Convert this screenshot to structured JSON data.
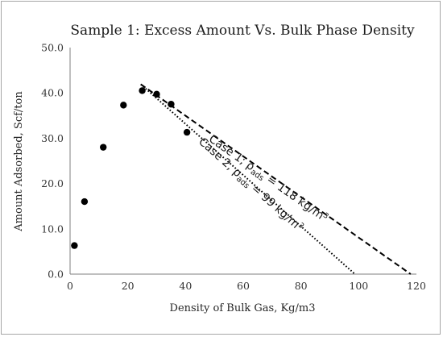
{
  "chart_data": {
    "type": "scatter",
    "title": "Sample 1: Excess Amount Vs. Bulk Phase Density",
    "xlabel": "Density of Bulk Gas, Kg/m3",
    "ylabel": "Amount Adsorbed, Scf/ton",
    "xlim": [
      0,
      120
    ],
    "ylim": [
      0,
      50
    ],
    "x_ticks": [
      "0",
      "20",
      "40",
      "60",
      "80",
      "100",
      "120"
    ],
    "y_ticks": [
      "0.0",
      "10.0",
      "20.0",
      "30.0",
      "40.0",
      "50.0"
    ],
    "x_tick_values": [
      0,
      20,
      40,
      60,
      80,
      100,
      120
    ],
    "y_tick_values": [
      0,
      10,
      20,
      30,
      40,
      50
    ],
    "grid": false,
    "legend": "none",
    "points": [
      {
        "x": 1.5,
        "y": 6.3
      },
      {
        "x": 5.0,
        "y": 16.0
      },
      {
        "x": 11.5,
        "y": 28.0
      },
      {
        "x": 18.5,
        "y": 37.3
      },
      {
        "x": 25.0,
        "y": 40.5
      },
      {
        "x": 30.0,
        "y": 39.7
      },
      {
        "x": 35.0,
        "y": 37.5
      },
      {
        "x": 40.5,
        "y": 31.3
      }
    ],
    "lines": [
      {
        "style": "dashed",
        "x": [
          24.5,
          118.0
        ],
        "y": [
          41.9,
          0.0
        ],
        "annotation": {
          "prefix": "Case 1; ρ",
          "sub": "ads",
          "value": " = 118 kg/m",
          "sup": "3"
        }
      },
      {
        "style": "dotted",
        "x": [
          24.5,
          98.7
        ],
        "y": [
          41.9,
          0.0
        ],
        "annotation": {
          "prefix": "Case 2, ρ",
          "sub": "ads",
          "value": " = 99 kg/m",
          "sup": "3"
        }
      }
    ],
    "colors": {
      "marker": "#000000",
      "axis": "#7f7f7f",
      "text": "#262626"
    }
  }
}
